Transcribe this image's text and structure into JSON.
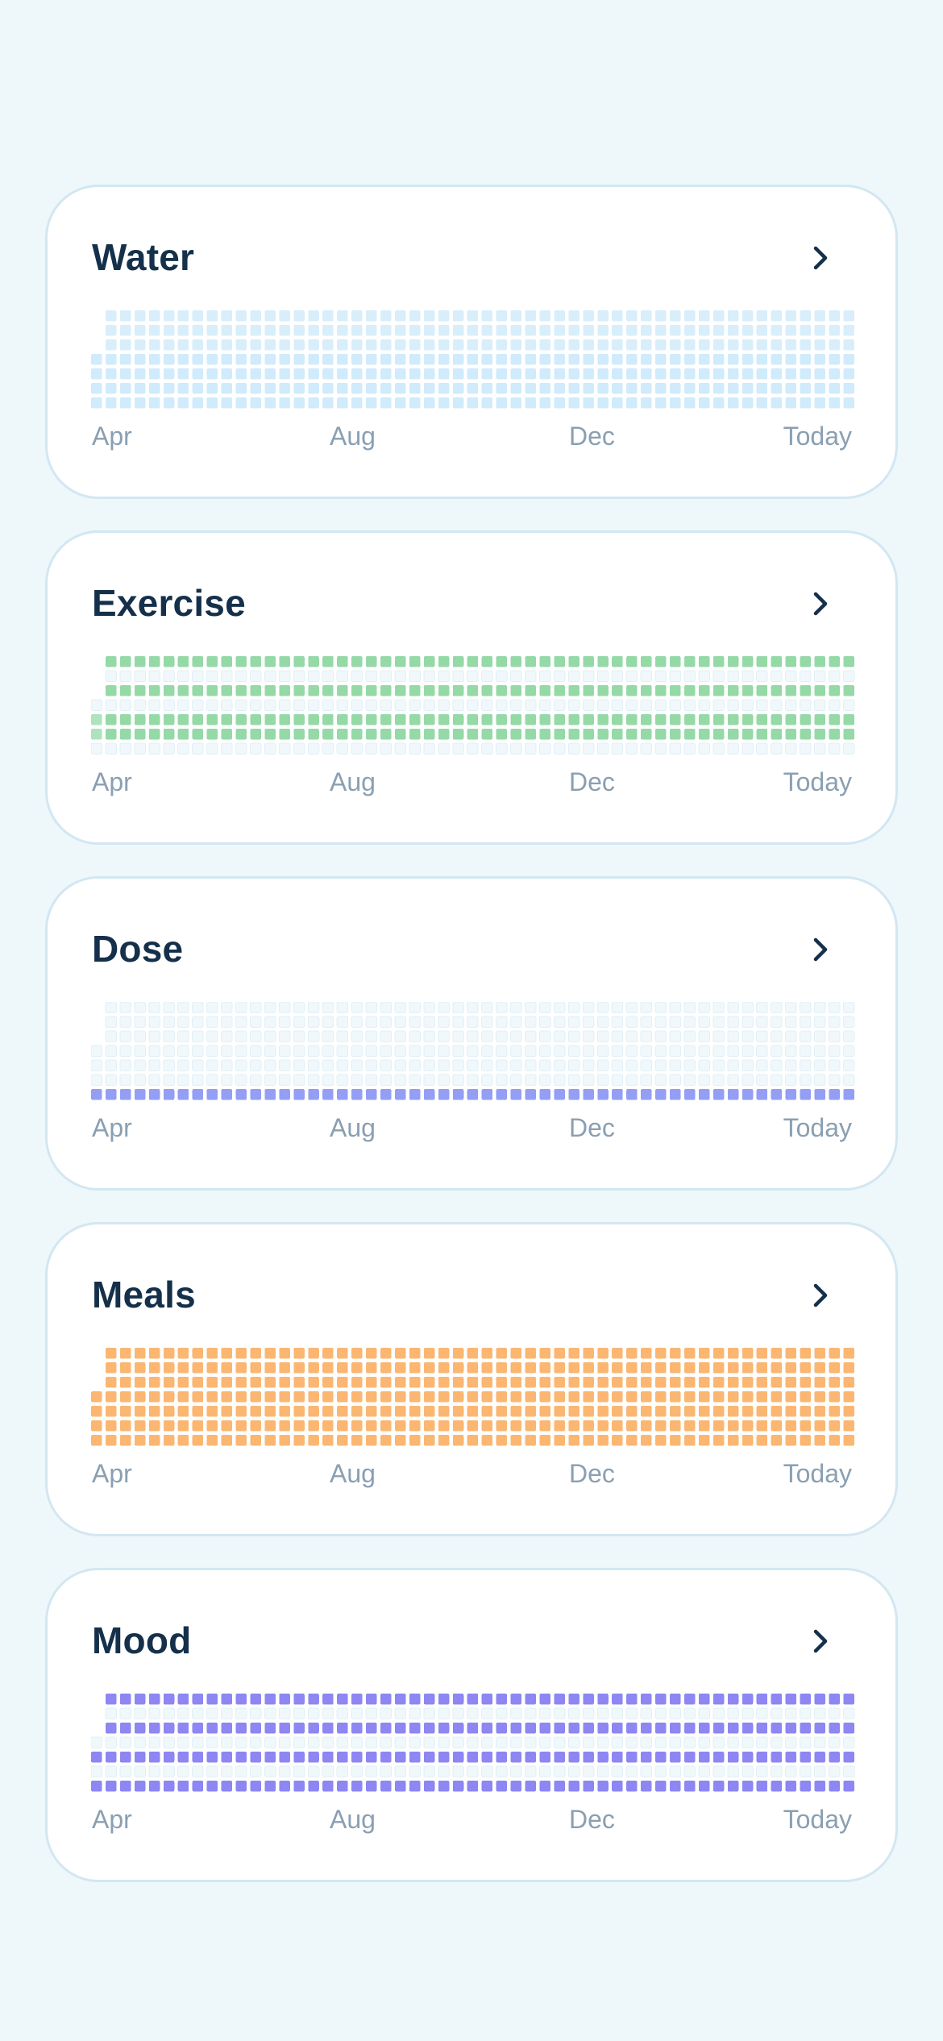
{
  "cards": [
    {
      "title": "Water",
      "colors": {
        "empty": "#f0f8fb",
        "light": "#d8eefb",
        "mid": "#d0ebfb",
        "full": "#c8e7fb"
      },
      "row_levels": [
        "light",
        "light",
        "light",
        "mid",
        "mid",
        "mid",
        "mid"
      ]
    },
    {
      "title": "Exercise",
      "colors": {
        "empty": "#f0f8fb",
        "light": "#c7ecd2",
        "mid": "#aee3bd",
        "full": "#95d9a7"
      },
      "row_levels": [
        "full",
        "empty",
        "full",
        "empty",
        "full",
        "full",
        "empty"
      ]
    },
    {
      "title": "Dose",
      "colors": {
        "empty": "#f0f8fb",
        "light": "#e6eefb",
        "mid": "#a9b4f6",
        "full": "#939ef4"
      },
      "row_levels": [
        "empty",
        "empty",
        "empty",
        "empty",
        "empty",
        "empty",
        "full"
      ]
    },
    {
      "title": "Meals",
      "colors": {
        "empty": "#f0f8fb",
        "light": "#fbc690",
        "mid": "#fbbd80",
        "full": "#fbb672"
      },
      "row_levels": [
        "full",
        "full",
        "full",
        "full",
        "full",
        "full",
        "full"
      ]
    },
    {
      "title": "Mood",
      "colors": {
        "empty": "#f0f8fb",
        "light": "#b7b3f8",
        "mid": "#9d97f5",
        "full": "#8d86f3"
      },
      "row_levels": [
        "full",
        "empty",
        "full",
        "empty",
        "full",
        "empty",
        "full"
      ]
    }
  ],
  "month_labels": [
    "Apr",
    "Aug",
    "Dec",
    "Today"
  ],
  "chevron_icon": "chevron-right-icon",
  "text_color": "#15304a",
  "label_color": "#8a9fb2"
}
